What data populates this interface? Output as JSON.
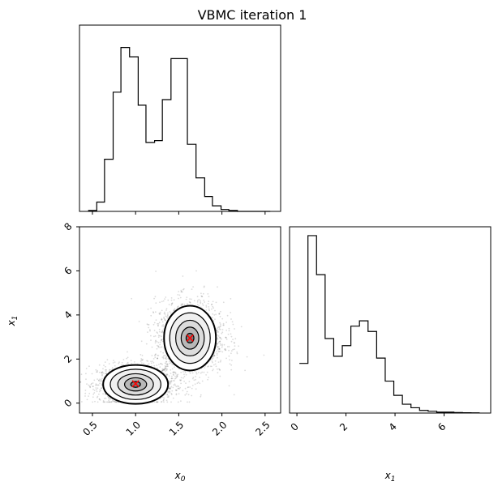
{
  "title": "VBMC iteration 1",
  "chart_data": [
    {
      "type": "bar",
      "panel": "histogram-x0",
      "title": "",
      "xlabel": "",
      "ylabel": "",
      "x_range": [
        0.35,
        2.68
      ],
      "bin_edges": [
        0.45,
        0.55,
        0.64,
        0.74,
        0.83,
        0.93,
        1.03,
        1.12,
        1.22,
        1.31,
        1.41,
        1.51,
        1.6,
        1.7,
        1.8,
        1.89,
        1.99,
        2.08,
        2.18,
        2.27,
        2.37,
        2.47,
        2.56
      ],
      "values": [
        0.5,
        5,
        28,
        64,
        88,
        83,
        57,
        37,
        38,
        60,
        82,
        82,
        36,
        18,
        8,
        3,
        1,
        0.5,
        0,
        0,
        0,
        0
      ],
      "ylim": [
        0,
        100
      ]
    },
    {
      "type": "bar",
      "panel": "histogram-x1",
      "title": "",
      "xlabel": "x_1",
      "ylabel": "",
      "x_range": [
        -0.3,
        7.9
      ],
      "xticks": [
        "0",
        "2",
        "4",
        "6"
      ],
      "bin_edges": [
        0.1,
        0.45,
        0.8,
        1.15,
        1.5,
        1.85,
        2.2,
        2.55,
        2.9,
        3.25,
        3.6,
        3.95,
        4.3,
        4.65,
        5.0,
        5.35,
        5.7,
        6.05,
        6.4,
        6.75,
        7.1,
        7.45
      ],
      "values": [
        28,
        100,
        78,
        42,
        32,
        38,
        49,
        52,
        46,
        31,
        18,
        10,
        5,
        3,
        1.5,
        1,
        0.5,
        0.5,
        0.3,
        0.2,
        0.1
      ],
      "ylim": [
        0,
        105
      ]
    },
    {
      "type": "scatter",
      "panel": "joint-x0-x1",
      "title": "",
      "xlabel": "x_0",
      "ylabel": "x_1",
      "xlim": [
        0.35,
        2.68
      ],
      "ylim": [
        -0.45,
        8.0
      ],
      "xticks": [
        "0.5",
        "1.0",
        "1.5",
        "2.0",
        "2.5"
      ],
      "yticks": [
        "0",
        "2",
        "4",
        "6",
        "8"
      ],
      "clusters": [
        {
          "center": [
            1.0,
            0.85
          ],
          "spread": [
            0.22,
            0.45
          ]
        },
        {
          "center": [
            1.63,
            2.95
          ],
          "spread": [
            0.2,
            0.85
          ]
        }
      ],
      "modes": [
        [
          1.0,
          0.88
        ],
        [
          1.63,
          2.95
        ]
      ],
      "mode_color": "#ff0000"
    }
  ],
  "tick_labels": {
    "x0_hist_xticks": [
      "",
      "",
      "",
      "",
      ""
    ],
    "joint_xticks": [
      "0.5",
      "1.0",
      "1.5",
      "2.0",
      "2.5"
    ],
    "joint_yticks": [
      "0",
      "2",
      "4",
      "6",
      "8"
    ],
    "x1_hist_xticks": [
      "0",
      "2",
      "4",
      "6"
    ]
  },
  "labels": {
    "x0_base": "x",
    "x0_sub": "0",
    "x1_base": "x",
    "x1_sub": "1"
  }
}
